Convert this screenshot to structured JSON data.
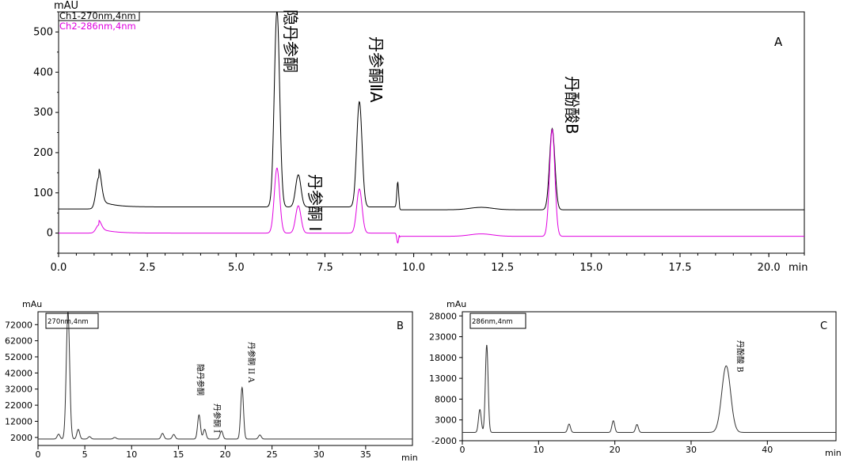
{
  "chart_data": [
    {
      "panel": "A",
      "type": "line",
      "ylabel": "mAU",
      "xlabel": "min",
      "xlim": [
        0,
        21.0
      ],
      "ylim": [
        -50,
        550
      ],
      "x_ticks": [
        0.0,
        2.5,
        5.0,
        7.5,
        10.0,
        12.5,
        15.0,
        17.5,
        20.0
      ],
      "x_tick_labels": [
        "0.0",
        "2.5",
        "5.0",
        "7.5",
        "10.0",
        "12.5",
        "15.0",
        "17.5",
        "20.0"
      ],
      "y_ticks": [
        0,
        100,
        200,
        300,
        400,
        500
      ],
      "legend_position": "top-left",
      "series": [
        {
          "name": "Ch1-270nm,4nm",
          "color": "#000000",
          "baseline": 60,
          "peaks": [
            {
              "x": 1.13,
              "y": 138
            },
            {
              "x": 6.15,
              "y": 550
            },
            {
              "x": 6.75,
              "y": 140
            },
            {
              "x": 8.47,
              "y": 322
            },
            {
              "x": 9.55,
              "y": 122
            },
            {
              "x": 13.9,
              "y": 262
            }
          ]
        },
        {
          "name": "Ch2-286nm,4nm",
          "color": "#e000e0",
          "baseline": 0,
          "peaks": [
            {
              "x": 1.13,
              "y": 20
            },
            {
              "x": 6.15,
              "y": 162
            },
            {
              "x": 6.75,
              "y": 68
            },
            {
              "x": 8.47,
              "y": 110
            },
            {
              "x": 9.55,
              "y": -25
            },
            {
              "x": 13.9,
              "y": 265
            }
          ]
        }
      ],
      "annotations": [
        {
          "text": "隐丹参酮",
          "x": 6.15
        },
        {
          "text": "丹参酮 I",
          "x": 6.75
        },
        {
          "text": "丹参酮ⅡA",
          "x": 8.47
        },
        {
          "text": "丹酚酸B",
          "x": 13.9
        },
        {
          "text": "A"
        }
      ]
    },
    {
      "panel": "B",
      "type": "line",
      "ylabel": "mAu",
      "xlabel": "min",
      "xlim": [
        0,
        40
      ],
      "ylim": [
        -3000,
        80000
      ],
      "x_ticks": [
        0,
        5,
        10,
        15,
        20,
        25,
        30,
        35
      ],
      "y_ticks": [
        2000,
        12000,
        22000,
        32000,
        42000,
        52000,
        62000,
        72000
      ],
      "legend": "270nm,4nm",
      "series": [
        {
          "name": "270nm,4nm",
          "color": "#333333",
          "baseline": 1000,
          "peaks": [
            {
              "x": 2.2,
              "y": 4000
            },
            {
              "x": 3.2,
              "y": 80000
            },
            {
              "x": 4.3,
              "y": 7000
            },
            {
              "x": 5.5,
              "y": 2500
            },
            {
              "x": 8.2,
              "y": 2000
            },
            {
              "x": 13.3,
              "y": 4500
            },
            {
              "x": 14.5,
              "y": 3800
            },
            {
              "x": 17.2,
              "y": 16000
            },
            {
              "x": 17.8,
              "y": 7000
            },
            {
              "x": 19.6,
              "y": 6000
            },
            {
              "x": 21.8,
              "y": 33000
            },
            {
              "x": 23.7,
              "y": 3500
            }
          ]
        }
      ],
      "annotations": [
        {
          "text": "隐丹参酮",
          "x": 17.2
        },
        {
          "text": "丹参酮 I",
          "x": 17.8
        },
        {
          "text": "丹参酮 II A",
          "x": 21.8
        },
        {
          "text": "B"
        }
      ]
    },
    {
      "panel": "C",
      "type": "line",
      "ylabel": "mAu",
      "xlabel": "min",
      "xlim": [
        0,
        49
      ],
      "ylim": [
        -2000,
        29000
      ],
      "x_ticks": [
        0,
        10,
        20,
        30,
        40
      ],
      "y_ticks": [
        -2000,
        3000,
        8000,
        13000,
        18000,
        23000,
        28000
      ],
      "legend": "286nm,4nm",
      "series": [
        {
          "name": "286nm,4nm",
          "color": "#333333",
          "baseline": 0,
          "peaks": [
            {
              "x": 2.3,
              "y": 5500
            },
            {
              "x": 3.2,
              "y": 21000
            },
            {
              "x": 14.0,
              "y": 2000
            },
            {
              "x": 19.8,
              "y": 2800
            },
            {
              "x": 22.9,
              "y": 1900
            },
            {
              "x": 34.6,
              "y": 16000
            }
          ]
        }
      ],
      "annotations": [
        {
          "text": "丹酚酸 B",
          "x": 34.6
        },
        {
          "text": "C"
        }
      ]
    }
  ]
}
